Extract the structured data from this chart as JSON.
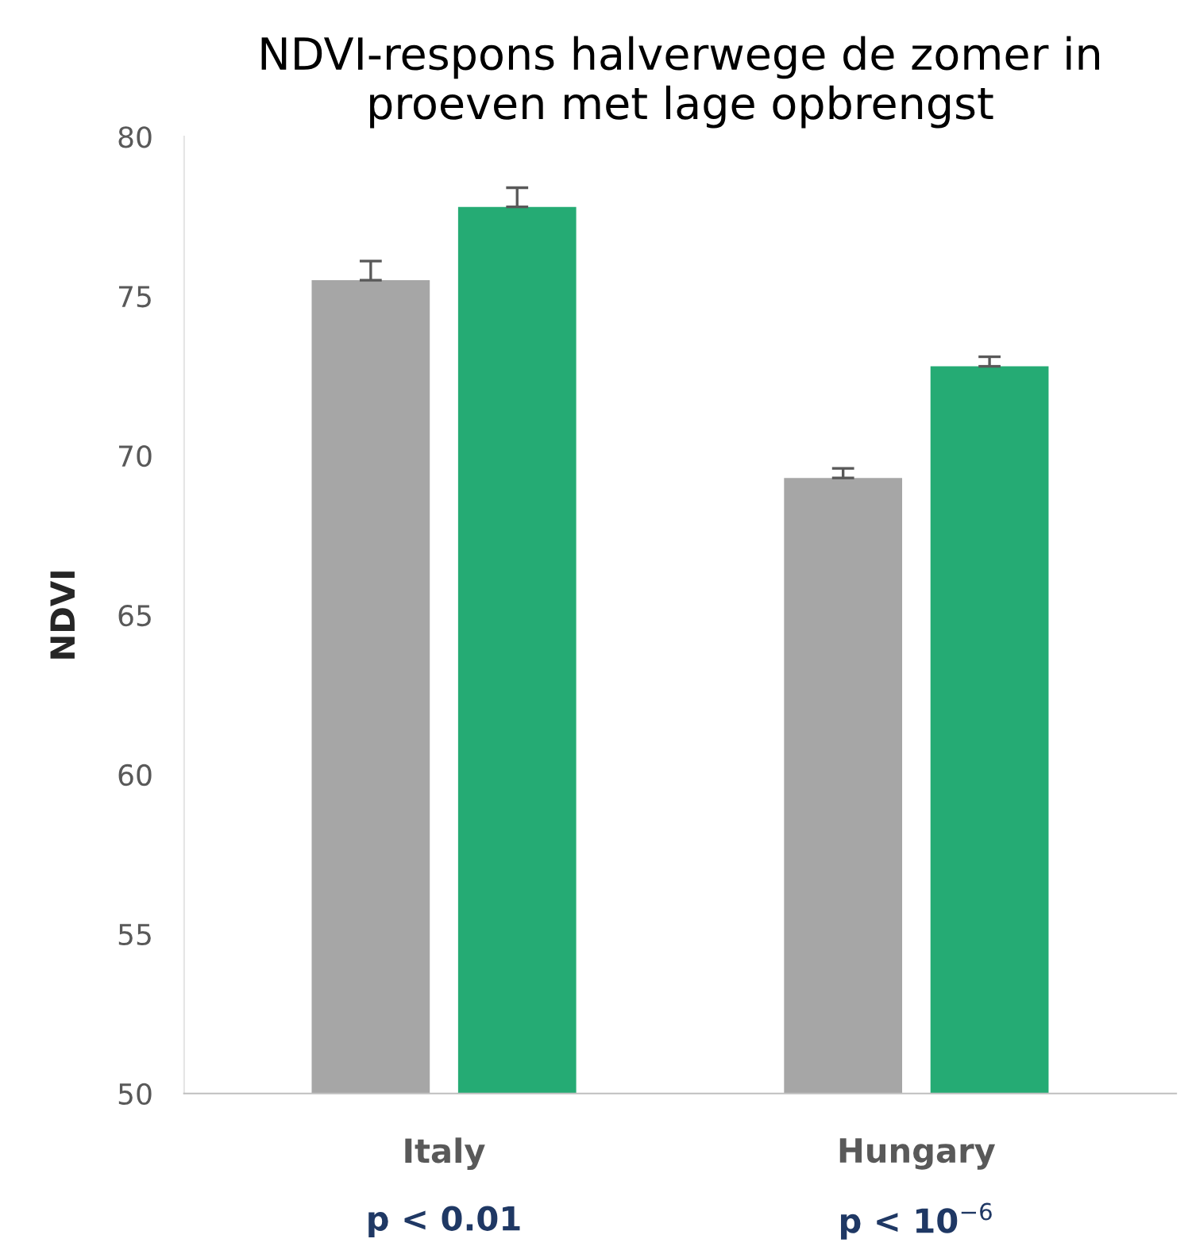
{
  "chart_data": {
    "type": "bar",
    "title": "NDVI-respons halverwege de zomer in\nproeven met lage opbrengst",
    "ylabel": "NDVI",
    "categories": [
      "Italy",
      "Hungary"
    ],
    "series": [
      {
        "color": "#a6a6a6",
        "values": [
          75.5,
          69.3
        ],
        "errors": [
          [
            75.5,
            76.1
          ],
          [
            69.3,
            69.6
          ]
        ]
      },
      {
        "color": "#25ab74",
        "values": [
          77.8,
          72.8
        ],
        "errors": [
          [
            77.8,
            78.4
          ],
          [
            72.8,
            73.1
          ]
        ]
      }
    ],
    "ylim": [
      50,
      80
    ],
    "yticks": [
      50,
      55,
      60,
      65,
      70,
      75,
      80
    ],
    "grid": false,
    "annotations": [
      "p < 0.01",
      "p < 10$^{−6}$"
    ]
  }
}
